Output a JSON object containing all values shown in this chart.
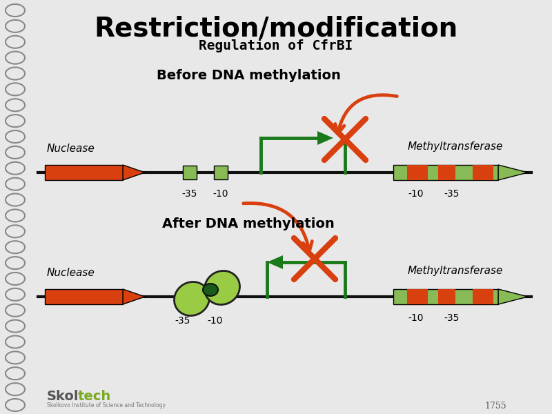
{
  "title": "Restriction/modification",
  "subtitle": "Regulation of CfrBI",
  "bg_color": "#e8e8e8",
  "dna_color": "#111111",
  "orange_color": "#d94010",
  "green_color": "#88bb55",
  "dark_green": "#1a7a1a",
  "label_before": "Before DNA methylation",
  "label_after": "After DNA methylation",
  "nuclease_label": "Nuclease",
  "methyltransferase_label": "Methyltransferase",
  "minus35": "-35",
  "minus10": "-10"
}
